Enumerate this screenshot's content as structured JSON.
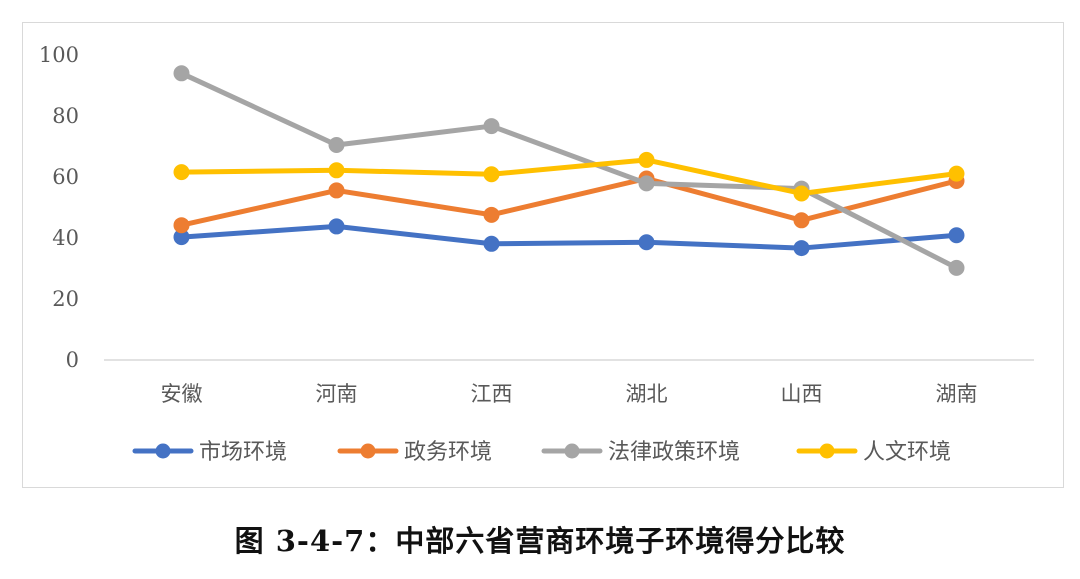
{
  "caption": "图 3-4-7：中部六省营商环境子环境得分比较",
  "chart_data": {
    "type": "line",
    "categories": [
      "安徽",
      "河南",
      "江西",
      "湖北",
      "山西",
      "湖南"
    ],
    "ylim": [
      0,
      100
    ],
    "yticks": [
      0,
      20,
      40,
      60,
      80,
      100
    ],
    "grid": false,
    "legend_position": "bottom",
    "series": [
      {
        "name": "市场环境",
        "color": "#4472C4",
        "values": [
          40.3,
          43.8,
          38.1,
          38.6,
          36.7,
          40.9
        ]
      },
      {
        "name": "政务环境",
        "color": "#ED7D31",
        "values": [
          44.2,
          55.6,
          47.6,
          59.5,
          45.8,
          58.7
        ]
      },
      {
        "name": "法律政策环境",
        "color": "#A5A5A5",
        "values": [
          94.0,
          70.5,
          76.7,
          57.9,
          56.2,
          30.2
        ]
      },
      {
        "name": "人文环境",
        "color": "#FFC000",
        "values": [
          61.6,
          62.2,
          60.9,
          65.6,
          54.6,
          61.1
        ]
      }
    ]
  }
}
